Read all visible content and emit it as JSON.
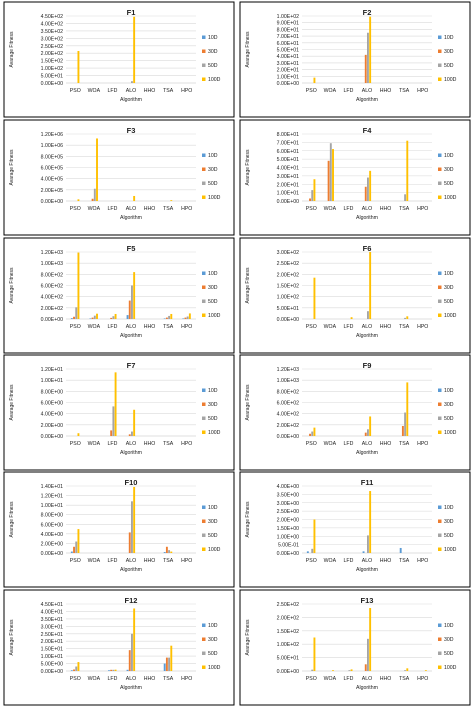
{
  "colors": {
    "10D": "#5b9bd5",
    "30D": "#ed7d31",
    "50D": "#a5a5a5",
    "100D": "#ffc000",
    "border": "#000000",
    "gridline": "#d9d9d9",
    "text": "#222222"
  },
  "xlabel": "Algorithm",
  "ylabel": "Avarage Fitness",
  "legend": [
    "10D",
    "30D",
    "50D",
    "100D"
  ],
  "categories": [
    "PSO",
    "WOA",
    "LFD",
    "ALO",
    "HHO",
    "TSA",
    "HPO"
  ],
  "chart_data": [
    {
      "type": "bar",
      "title": "F1",
      "yticks": [
        "0.00E+00",
        "5.00E+01",
        "1.00E+02",
        "1.50E+02",
        "2.00E+02",
        "2.50E+02",
        "3.00E+02",
        "3.50E+02",
        "4.00E+02",
        "4.50E+02"
      ],
      "ylim": [
        0,
        450
      ],
      "categories": [
        "PSO",
        "WOA",
        "LFD",
        "ALO",
        "HHO",
        "TSA",
        "HPO"
      ],
      "series": [
        {
          "name": "10D",
          "values": [
            0,
            0,
            0,
            0,
            0,
            0,
            0
          ]
        },
        {
          "name": "30D",
          "values": [
            0,
            0,
            0,
            0,
            0,
            0,
            0
          ]
        },
        {
          "name": "50D",
          "values": [
            0,
            0,
            0,
            12,
            0,
            0,
            0
          ]
        },
        {
          "name": "100D",
          "values": [
            215,
            0,
            0,
            445,
            0,
            0,
            0
          ]
        }
      ]
    },
    {
      "type": "bar",
      "title": "F2",
      "yticks": [
        "0.00E+00",
        "1.00E+01",
        "2.00E+01",
        "3.00E+01",
        "4.00E+01",
        "5.00E+01",
        "6.00E+01",
        "7.00E+01",
        "8.00E+01",
        "9.00E+01",
        "1.00E+02"
      ],
      "ylim": [
        0,
        100
      ],
      "categories": [
        "PSO",
        "WOA",
        "LFD",
        "ALO",
        "HHO",
        "TSA",
        "HPO"
      ],
      "series": [
        {
          "name": "10D",
          "values": [
            0,
            0,
            0,
            0,
            0,
            0,
            0
          ]
        },
        {
          "name": "30D",
          "values": [
            0,
            0,
            0,
            42,
            0,
            0,
            0
          ]
        },
        {
          "name": "50D",
          "values": [
            0,
            0,
            0,
            75,
            0,
            0,
            0
          ]
        },
        {
          "name": "100D",
          "values": [
            8,
            0,
            0,
            99,
            0,
            0,
            0
          ]
        }
      ]
    },
    {
      "type": "bar",
      "title": "F3",
      "yticks": [
        "0.00E+00",
        "2.00E+05",
        "4.00E+05",
        "6.00E+05",
        "8.00E+05",
        "1.00E+06",
        "1.20E+06"
      ],
      "ylim": [
        0,
        1200000
      ],
      "categories": [
        "PSO",
        "WOA",
        "LFD",
        "ALO",
        "HHO",
        "TSA",
        "HPO"
      ],
      "series": [
        {
          "name": "10D",
          "values": [
            0,
            0,
            0,
            0,
            0,
            0,
            0
          ]
        },
        {
          "name": "30D",
          "values": [
            0,
            40000,
            0,
            0,
            0,
            0,
            0
          ]
        },
        {
          "name": "50D",
          "values": [
            0,
            220000,
            0,
            0,
            0,
            0,
            0
          ]
        },
        {
          "name": "100D",
          "values": [
            30000,
            1120000,
            0,
            90000,
            0,
            15000,
            0
          ]
        }
      ]
    },
    {
      "type": "bar",
      "title": "F4",
      "yticks": [
        "0.00E+00",
        "1.00E+01",
        "2.00E+01",
        "3.00E+01",
        "4.00E+01",
        "5.00E+01",
        "6.00E+01",
        "7.00E+01",
        "8.00E+01"
      ],
      "ylim": [
        0,
        80
      ],
      "categories": [
        "PSO",
        "WOA",
        "LFD",
        "ALO",
        "HHO",
        "TSA",
        "HPO"
      ],
      "series": [
        {
          "name": "10D",
          "values": [
            0,
            0,
            0,
            0,
            0,
            0,
            0
          ]
        },
        {
          "name": "30D",
          "values": [
            3,
            48,
            0,
            17,
            0,
            0,
            0
          ]
        },
        {
          "name": "50D",
          "values": [
            13,
            69,
            0,
            28,
            0,
            8,
            0
          ]
        },
        {
          "name": "100D",
          "values": [
            26,
            62,
            0,
            36,
            0,
            72,
            0
          ]
        }
      ]
    },
    {
      "type": "bar",
      "title": "F5",
      "yticks": [
        "0.00E+00",
        "2.00E+02",
        "4.00E+02",
        "6.00E+02",
        "8.00E+02",
        "1.00E+03",
        "1.20E+03"
      ],
      "ylim": [
        0,
        1200
      ],
      "categories": [
        "PSO",
        "WOA",
        "LFD",
        "ALO",
        "HHO",
        "TSA",
        "HPO"
      ],
      "series": [
        {
          "name": "10D",
          "values": [
            15,
            10,
            0,
            70,
            0,
            10,
            10
          ]
        },
        {
          "name": "30D",
          "values": [
            40,
            25,
            20,
            330,
            0,
            25,
            25
          ]
        },
        {
          "name": "50D",
          "values": [
            210,
            60,
            50,
            600,
            0,
            55,
            45
          ]
        },
        {
          "name": "100D",
          "values": [
            1190,
            95,
            90,
            840,
            0,
            90,
            100
          ]
        }
      ]
    },
    {
      "type": "bar",
      "title": "F6",
      "yticks": [
        "0.00E+00",
        "5.00E+01",
        "1.00E+02",
        "1.50E+02",
        "2.00E+02",
        "2.50E+02",
        "3.00E+02"
      ],
      "ylim": [
        0,
        300
      ],
      "categories": [
        "PSO",
        "WOA",
        "LFD",
        "ALO",
        "HHO",
        "TSA",
        "HPO"
      ],
      "series": [
        {
          "name": "10D",
          "values": [
            0,
            0,
            0,
            0,
            0,
            0,
            0
          ]
        },
        {
          "name": "30D",
          "values": [
            0,
            0,
            0,
            0,
            0,
            0,
            0
          ]
        },
        {
          "name": "50D",
          "values": [
            0,
            0,
            0,
            35,
            0,
            5,
            0
          ]
        },
        {
          "name": "100D",
          "values": [
            185,
            0,
            8,
            300,
            0,
            12,
            0
          ]
        }
      ]
    },
    {
      "type": "bar",
      "title": "F7",
      "yticks": [
        "0.00E+00",
        "2.00E+00",
        "4.00E+00",
        "6.00E+00",
        "8.00E+00",
        "1.00E+01",
        "1.20E+01"
      ],
      "ylim": [
        0,
        12
      ],
      "categories": [
        "PSO",
        "WOA",
        "LFD",
        "ALO",
        "HHO",
        "TSA",
        "HPO"
      ],
      "series": [
        {
          "name": "10D",
          "values": [
            0,
            0,
            0,
            0,
            0,
            0,
            0
          ]
        },
        {
          "name": "30D",
          "values": [
            0,
            0,
            1.0,
            0.3,
            0,
            0,
            0
          ]
        },
        {
          "name": "50D",
          "values": [
            0,
            0,
            5.3,
            0.8,
            0,
            0,
            0
          ]
        },
        {
          "name": "100D",
          "values": [
            0.5,
            0,
            11.4,
            4.7,
            0,
            0,
            0
          ]
        }
      ]
    },
    {
      "type": "bar",
      "title": "F9",
      "yticks": [
        "0.00E+00",
        "2.00E+02",
        "4.00E+02",
        "6.00E+02",
        "8.00E+02",
        "1.00E+03",
        "1.20E+03"
      ],
      "ylim": [
        0,
        1200
      ],
      "categories": [
        "PSO",
        "WOA",
        "LFD",
        "ALO",
        "HHO",
        "TSA",
        "HPO"
      ],
      "series": [
        {
          "name": "10D",
          "values": [
            0,
            0,
            0,
            0,
            0,
            0,
            0
          ]
        },
        {
          "name": "30D",
          "values": [
            40,
            0,
            0,
            60,
            0,
            180,
            0
          ]
        },
        {
          "name": "50D",
          "values": [
            80,
            0,
            0,
            120,
            0,
            420,
            0
          ]
        },
        {
          "name": "100D",
          "values": [
            150,
            0,
            0,
            350,
            0,
            960,
            0
          ]
        }
      ]
    },
    {
      "type": "bar",
      "title": "F10",
      "yticks": [
        "0.00E+00",
        "2.00E+00",
        "4.00E+00",
        "6.00E+00",
        "8.00E+00",
        "1.00E+01",
        "1.20E+01",
        "1.40E+01"
      ],
      "ylim": [
        0,
        14
      ],
      "categories": [
        "PSO",
        "WOA",
        "LFD",
        "ALO",
        "HHO",
        "TSA",
        "HPO"
      ],
      "series": [
        {
          "name": "10D",
          "values": [
            0.3,
            0,
            0,
            0,
            0,
            0.2,
            0
          ]
        },
        {
          "name": "30D",
          "values": [
            1.3,
            0,
            0,
            4.3,
            0,
            1.3,
            0
          ]
        },
        {
          "name": "50D",
          "values": [
            2.4,
            0,
            0,
            10.8,
            0,
            0.6,
            0
          ]
        },
        {
          "name": "100D",
          "values": [
            5.0,
            0,
            0,
            13.8,
            0,
            0.3,
            0
          ]
        }
      ]
    },
    {
      "type": "bar",
      "title": "F11",
      "yticks": [
        "0.00E+00",
        "5.00E-01",
        "1.00E+00",
        "1.50E+00",
        "2.00E+00",
        "2.50E+00",
        "3.00E+00",
        "3.50E+00",
        "4.00E+00"
      ],
      "ylim": [
        0,
        4
      ],
      "categories": [
        "PSO",
        "WOA",
        "LFD",
        "ALO",
        "HHO",
        "TSA",
        "HPO"
      ],
      "series": [
        {
          "name": "10D",
          "values": [
            0.1,
            0,
            0,
            0.1,
            0,
            0.3,
            0
          ]
        },
        {
          "name": "30D",
          "values": [
            0,
            0,
            0,
            0,
            0,
            0,
            0
          ]
        },
        {
          "name": "50D",
          "values": [
            0.25,
            0,
            0,
            1.05,
            0,
            0,
            0
          ]
        },
        {
          "name": "100D",
          "values": [
            2.0,
            0,
            0,
            3.7,
            0,
            0,
            0
          ]
        }
      ]
    },
    {
      "type": "bar",
      "title": "F12",
      "yticks": [
        "0.00E+00",
        "5.00E+00",
        "1.00E+01",
        "1.50E+01",
        "2.00E+01",
        "2.50E+01",
        "3.00E+01",
        "3.50E+01",
        "4.00E+01",
        "4.50E+01"
      ],
      "ylim": [
        0,
        45
      ],
      "categories": [
        "PSO",
        "WOA",
        "LFD",
        "ALO",
        "HHO",
        "TSA",
        "HPO"
      ],
      "series": [
        {
          "name": "10D",
          "values": [
            0.5,
            0,
            0.5,
            0.8,
            0,
            5,
            0
          ]
        },
        {
          "name": "30D",
          "values": [
            1,
            0,
            0.8,
            14,
            0,
            9,
            0
          ]
        },
        {
          "name": "50D",
          "values": [
            3,
            0,
            0.8,
            25,
            0,
            9,
            0
          ]
        },
        {
          "name": "100D",
          "values": [
            6,
            0,
            0.9,
            42,
            0,
            17,
            0
          ]
        }
      ]
    },
    {
      "type": "bar",
      "title": "F13",
      "yticks": [
        "0.00E+00",
        "5.00E+01",
        "1.00E+02",
        "1.50E+02",
        "2.00E+02",
        "2.50E+02"
      ],
      "ylim": [
        0,
        250
      ],
      "categories": [
        "PSO",
        "WOA",
        "LFD",
        "ALO",
        "HHO",
        "TSA",
        "HPO"
      ],
      "series": [
        {
          "name": "10D",
          "values": [
            0,
            0,
            0,
            0,
            0,
            0,
            0
          ]
        },
        {
          "name": "30D",
          "values": [
            0,
            0,
            0,
            25,
            0,
            0,
            0
          ]
        },
        {
          "name": "50D",
          "values": [
            5,
            0,
            3,
            120,
            0,
            3,
            0
          ]
        },
        {
          "name": "100D",
          "values": [
            125,
            3,
            6,
            235,
            0,
            10,
            3
          ]
        }
      ]
    }
  ]
}
